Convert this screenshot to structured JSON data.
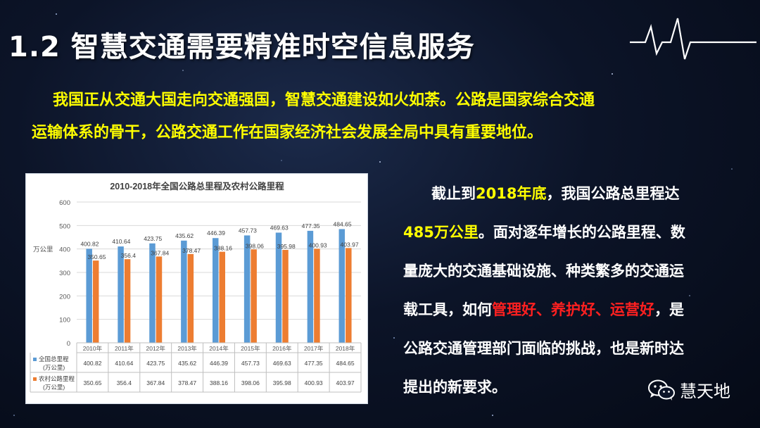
{
  "title": "1.2 智慧交通需要精准时空信息服务",
  "intro": {
    "line1": "我国正从交通大国走向交通强国，智慧交通建设如火如荼。公路是国家综合交通",
    "line2": "运输体系的骨干，公路交通工作在国家经济社会发展全局中具有重要地位。"
  },
  "side_text": {
    "p1_a": "截止到",
    "p1_b": "2018年底",
    "p1_c": "，我国公路总里程达",
    "p2_a": "485万公里",
    "p2_b": "。面对逐年增长的公路里程、数",
    "p3": "量庞大的交通基础设施、种类繁多的交通运",
    "p4_a": "载工具，如何",
    "p4_b": "管理好、养护好、运营好",
    "p4_c": "，是",
    "p5": "公路交通管理部门面临的挑战，也是新时达",
    "p6": "提出的新要求。"
  },
  "watermark": {
    "text": "慧天地",
    "icon": "wechat-icon"
  },
  "colors": {
    "title": "#ffffff",
    "highlight": "#ffff00",
    "emphasis": "#ff2020",
    "series_total": "#5b9bd5",
    "series_rural": "#ed7d31"
  },
  "chart_data": {
    "type": "bar",
    "title": "2010-2018年全国公路总里程及农村公路里程",
    "ylabel": "万公里",
    "ylim": [
      0,
      600
    ],
    "yticks": [
      0,
      100,
      200,
      300,
      400,
      500,
      600
    ],
    "categories": [
      "2010年",
      "2011年",
      "2012年",
      "2013年",
      "2014年",
      "2015年",
      "2016年",
      "2017年",
      "2018年"
    ],
    "series": [
      {
        "name": "全国总里程",
        "unit": "(万公里)",
        "color": "#5b9bd5",
        "values": [
          400.82,
          410.64,
          423.75,
          435.62,
          446.39,
          457.73,
          469.63,
          477.35,
          484.65
        ],
        "labels": [
          "400.82",
          "410.64",
          "423.75",
          "435.62",
          "446.39",
          "457.73",
          "469.63",
          "477.35",
          "484.65"
        ]
      },
      {
        "name": "农村公路里程",
        "unit": "(万公里)",
        "color": "#ed7d31",
        "values": [
          350.65,
          356.4,
          367.84,
          378.47,
          388.16,
          398.06,
          395.98,
          400.93,
          403.97
        ],
        "labels": [
          "350.65",
          "356.4",
          "367.84",
          "378.47",
          "388.16",
          "398.06",
          "395.98",
          "400.93",
          "403.97"
        ]
      }
    ],
    "grid": true,
    "legend": "data-table"
  }
}
